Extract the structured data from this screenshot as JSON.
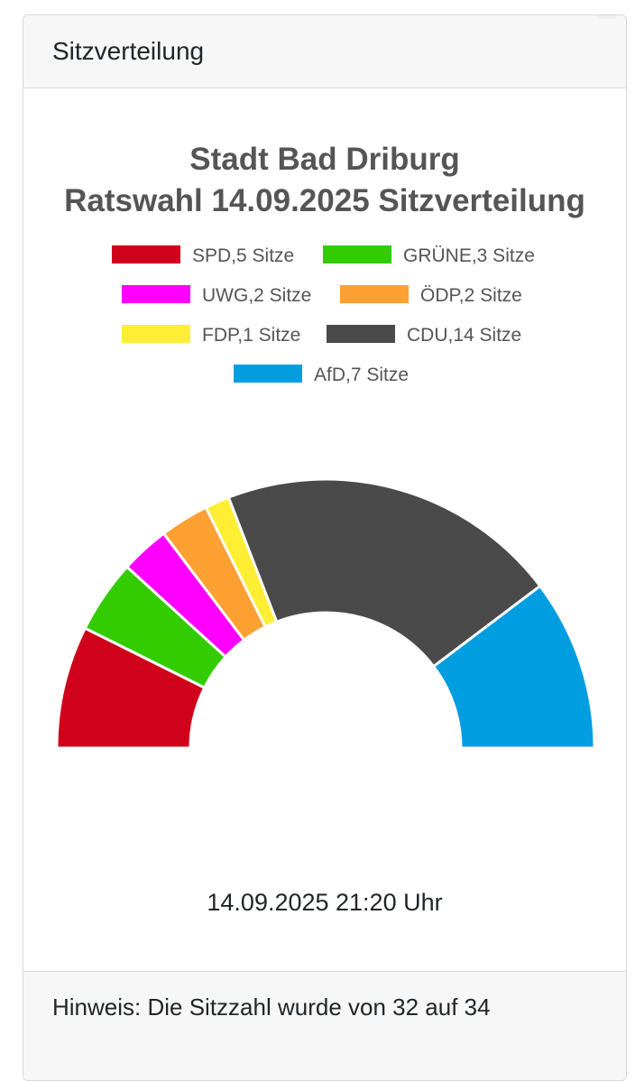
{
  "card": {
    "header_title": "Sitzverteilung",
    "timestamp": "14.09.2025 21:20 Uhr",
    "footer_note": "Hinweis: Die Sitzzahl wurde von 32 auf 34"
  },
  "chart_data": {
    "type": "pie",
    "variant": "half-donut (parliament seat distribution)",
    "title": [
      "Stadt Bad Driburg",
      "Ratswahl 14.09.2025 Sitzverteilung"
    ],
    "total_seats": 34,
    "legend_position": "top",
    "series": [
      {
        "label": "SPD,5 Sitze",
        "party": "SPD",
        "seats": 5,
        "color": "#d0021b"
      },
      {
        "label": "GRÜNE,3 Sitze",
        "party": "GRÜNE",
        "seats": 3,
        "color": "#33cc00"
      },
      {
        "label": "UWG,2 Sitze",
        "party": "UWG",
        "seats": 2,
        "color": "#ff00ff"
      },
      {
        "label": "ÖDP,2 Sitze",
        "party": "ÖDP",
        "seats": 2,
        "color": "#ffa033"
      },
      {
        "label": "FDP,1 Sitze",
        "party": "FDP",
        "seats": 1,
        "color": "#ffee33"
      },
      {
        "label": "CDU,14 Sitze",
        "party": "CDU",
        "seats": 14,
        "color": "#4a4a4a"
      },
      {
        "label": "AfD,7 Sitze",
        "party": "AfD",
        "seats": 7,
        "color": "#009ee0"
      }
    ]
  }
}
